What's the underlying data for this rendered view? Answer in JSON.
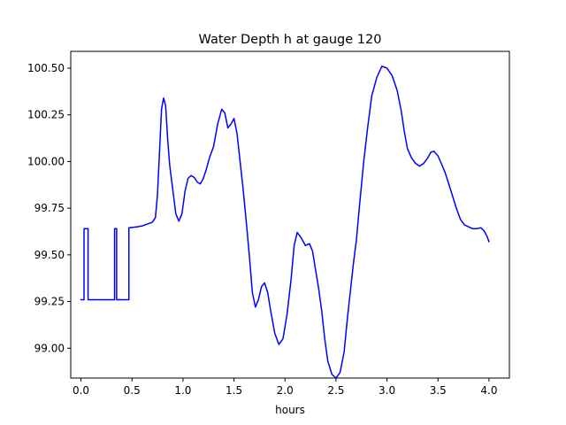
{
  "chart_data": {
    "type": "line",
    "title": "Water Depth h at gauge 120",
    "xlabel": "hours",
    "ylabel": "",
    "xlim": [
      -0.1,
      4.2
    ],
    "ylim": [
      98.84,
      100.59
    ],
    "xticks": [
      0.0,
      0.5,
      1.0,
      1.5,
      2.0,
      2.5,
      3.0,
      3.5,
      4.0
    ],
    "xtick_labels": [
      "0.0",
      "0.5",
      "1.0",
      "1.5",
      "2.0",
      "2.5",
      "3.0",
      "3.5",
      "4.0"
    ],
    "yticks": [
      99.0,
      99.25,
      99.5,
      99.75,
      100.0,
      100.25,
      100.5
    ],
    "ytick_labels": [
      "99.00",
      "99.25",
      "99.50",
      "99.75",
      "100.00",
      "100.25",
      "100.50"
    ],
    "grid": false,
    "series": [
      {
        "color": "#0000ff",
        "x": [
          0.0,
          0.03,
          0.03,
          0.07,
          0.07,
          0.33,
          0.33,
          0.35,
          0.35,
          0.47,
          0.47,
          0.55,
          0.6,
          0.65,
          0.7,
          0.73,
          0.75,
          0.77,
          0.79,
          0.81,
          0.83,
          0.85,
          0.87,
          0.9,
          0.93,
          0.96,
          0.99,
          1.02,
          1.05,
          1.08,
          1.11,
          1.14,
          1.17,
          1.2,
          1.23,
          1.26,
          1.3,
          1.34,
          1.38,
          1.41,
          1.44,
          1.47,
          1.5,
          1.53,
          1.56,
          1.59,
          1.62,
          1.65,
          1.68,
          1.71,
          1.74,
          1.77,
          1.8,
          1.83,
          1.86,
          1.9,
          1.94,
          1.98,
          2.02,
          2.06,
          2.09,
          2.12,
          2.16,
          2.2,
          2.24,
          2.27,
          2.3,
          2.33,
          2.36,
          2.39,
          2.42,
          2.46,
          2.5,
          2.54,
          2.58,
          2.61,
          2.64,
          2.67,
          2.7,
          2.73,
          2.77,
          2.81,
          2.85,
          2.9,
          2.95,
          3.0,
          3.05,
          3.1,
          3.14,
          3.17,
          3.2,
          3.24,
          3.28,
          3.32,
          3.36,
          3.4,
          3.43,
          3.46,
          3.5,
          3.54,
          3.57,
          3.6,
          3.64,
          3.68,
          3.72,
          3.76,
          3.8,
          3.84,
          3.88,
          3.92,
          3.95,
          3.98,
          4.0
        ],
        "y": [
          99.26,
          99.26,
          99.64,
          99.64,
          99.26,
          99.26,
          99.64,
          99.64,
          99.26,
          99.26,
          99.645,
          99.65,
          99.655,
          99.665,
          99.675,
          99.7,
          99.82,
          100.05,
          100.28,
          100.34,
          100.3,
          100.12,
          99.98,
          99.85,
          99.72,
          99.68,
          99.72,
          99.84,
          99.91,
          99.925,
          99.915,
          99.89,
          99.88,
          99.91,
          99.96,
          100.02,
          100.08,
          100.2,
          100.28,
          100.26,
          100.18,
          100.2,
          100.23,
          100.15,
          100.0,
          99.85,
          99.68,
          99.5,
          99.3,
          99.22,
          99.26,
          99.33,
          99.35,
          99.3,
          99.2,
          99.08,
          99.02,
          99.05,
          99.18,
          99.37,
          99.55,
          99.62,
          99.59,
          99.55,
          99.56,
          99.52,
          99.42,
          99.32,
          99.2,
          99.05,
          98.93,
          98.86,
          98.84,
          98.87,
          98.98,
          99.15,
          99.3,
          99.45,
          99.58,
          99.76,
          99.99,
          100.18,
          100.35,
          100.45,
          100.51,
          100.5,
          100.46,
          100.38,
          100.27,
          100.16,
          100.07,
          100.02,
          99.99,
          99.975,
          99.99,
          100.02,
          100.05,
          100.055,
          100.03,
          99.98,
          99.94,
          99.89,
          99.82,
          99.75,
          99.69,
          99.66,
          99.65,
          99.64,
          99.64,
          99.645,
          99.63,
          99.6,
          99.57
        ]
      }
    ]
  }
}
